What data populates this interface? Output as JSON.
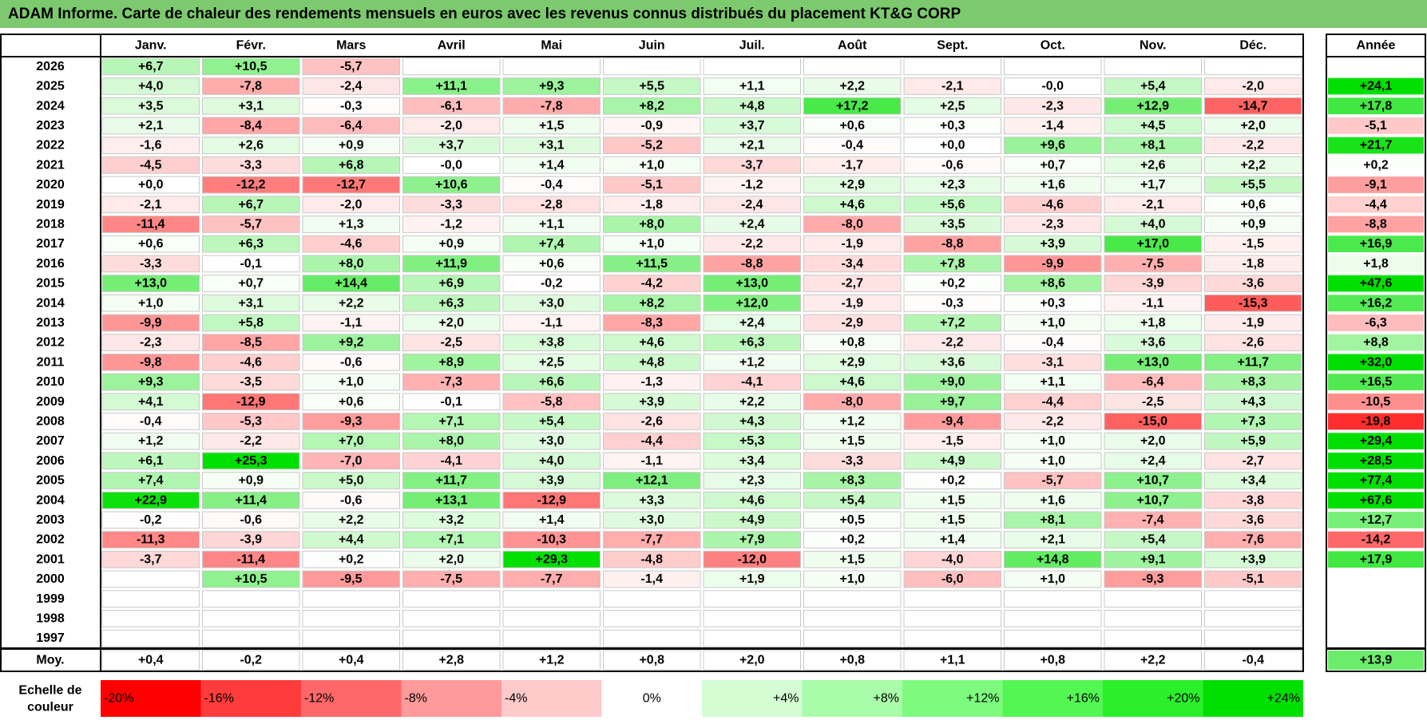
{
  "title": "ADAM Informe. Carte de chaleur des rendements mensuels en euros avec les revenus connus distribués du placement KT&G CORP",
  "chart_data": {
    "type": "heatmap",
    "columns": [
      "Janv.",
      "Févr.",
      "Mars",
      "Avril",
      "Mai",
      "Juin",
      "Juil.",
      "Août",
      "Sept.",
      "Oct.",
      "Nov.",
      "Déc."
    ],
    "year_column_label": "Année",
    "average_row_label": "Moy.",
    "rows": [
      {
        "year": "2026",
        "values": [
          "+6,7",
          "+10,5",
          "-5,7",
          "",
          "",
          "",
          "",
          "",
          "",
          "",
          "",
          ""
        ],
        "annual": ""
      },
      {
        "year": "2025",
        "values": [
          "+4,0",
          "-7,8",
          "-2,4",
          "+11,1",
          "+9,3",
          "+5,5",
          "+1,1",
          "+2,2",
          "-2,1",
          "-0,0",
          "+5,4",
          "-2,0"
        ],
        "annual": "+24,1"
      },
      {
        "year": "2024",
        "values": [
          "+3,5",
          "+3,1",
          "-0,3",
          "-6,1",
          "-7,8",
          "+8,2",
          "+4,8",
          "+17,2",
          "+2,5",
          "-2,3",
          "+12,9",
          "-14,7"
        ],
        "annual": "+17,8"
      },
      {
        "year": "2023",
        "values": [
          "+2,1",
          "-8,4",
          "-6,4",
          "-2,0",
          "+1,5",
          "-0,9",
          "+3,7",
          "+0,6",
          "+0,3",
          "-1,4",
          "+4,5",
          "+2,0"
        ],
        "annual": "-5,1"
      },
      {
        "year": "2022",
        "values": [
          "-1,6",
          "+2,6",
          "+0,9",
          "+3,7",
          "+3,1",
          "-5,2",
          "+2,1",
          "-0,4",
          "+0,0",
          "+9,6",
          "+8,1",
          "-2,2"
        ],
        "annual": "+21,7"
      },
      {
        "year": "2021",
        "values": [
          "-4,5",
          "-3,3",
          "+6,8",
          "-0,0",
          "+1,4",
          "+1,0",
          "-3,7",
          "-1,7",
          "-0,6",
          "+0,7",
          "+2,6",
          "+2,2"
        ],
        "annual": "+0,2"
      },
      {
        "year": "2020",
        "values": [
          "+0,0",
          "-12,2",
          "-12,7",
          "+10,6",
          "-0,4",
          "-5,1",
          "-1,2",
          "+2,9",
          "+2,3",
          "+1,6",
          "+1,7",
          "+5,5"
        ],
        "annual": "-9,1"
      },
      {
        "year": "2019",
        "values": [
          "-2,1",
          "+6,7",
          "-2,0",
          "-3,3",
          "-2,8",
          "-1,8",
          "-2,4",
          "+4,6",
          "+5,6",
          "-4,6",
          "-2,1",
          "+0,6"
        ],
        "annual": "-4,4"
      },
      {
        "year": "2018",
        "values": [
          "-11,4",
          "-5,7",
          "+1,3",
          "-1,2",
          "+1,1",
          "+8,0",
          "+2,4",
          "-8,0",
          "+3,5",
          "-2,3",
          "+4,0",
          "+0,9"
        ],
        "annual": "-8,8"
      },
      {
        "year": "2017",
        "values": [
          "+0,6",
          "+6,3",
          "-4,6",
          "+0,9",
          "+7,4",
          "+1,0",
          "-2,2",
          "-1,9",
          "-8,8",
          "+3,9",
          "+17,0",
          "-1,5"
        ],
        "annual": "+16,9"
      },
      {
        "year": "2016",
        "values": [
          "-3,3",
          "-0,1",
          "+8,0",
          "+11,9",
          "+0,6",
          "+11,5",
          "-8,8",
          "-3,4",
          "+7,8",
          "-9,9",
          "-7,5",
          "-1,8"
        ],
        "annual": "+1,8"
      },
      {
        "year": "2015",
        "values": [
          "+13,0",
          "+0,7",
          "+14,4",
          "+6,9",
          "-0,2",
          "-4,2",
          "+13,0",
          "-2,7",
          "+0,2",
          "+8,6",
          "-3,9",
          "-3,6"
        ],
        "annual": "+47,6"
      },
      {
        "year": "2014",
        "values": [
          "+1,0",
          "+3,1",
          "+2,2",
          "+6,3",
          "+3,0",
          "+8,2",
          "+12,0",
          "-1,9",
          "-0,3",
          "+0,3",
          "-1,1",
          "-15,3"
        ],
        "annual": "+16,2"
      },
      {
        "year": "2013",
        "values": [
          "-9,9",
          "+5,8",
          "-1,1",
          "+2,0",
          "-1,1",
          "-8,3",
          "+2,4",
          "-2,9",
          "+7,2",
          "+1,0",
          "+1,8",
          "-1,9"
        ],
        "annual": "-6,3"
      },
      {
        "year": "2012",
        "values": [
          "-2,3",
          "-8,5",
          "+9,2",
          "-2,5",
          "+3,8",
          "+4,6",
          "+6,3",
          "+0,8",
          "-2,2",
          "-0,4",
          "+3,6",
          "-2,6"
        ],
        "annual": "+8,8"
      },
      {
        "year": "2011",
        "values": [
          "-9,8",
          "-4,6",
          "-0,6",
          "+8,9",
          "+2,5",
          "+4,8",
          "+1,2",
          "+2,9",
          "+3,6",
          "-3,1",
          "+13,0",
          "+11,7"
        ],
        "annual": "+32,0"
      },
      {
        "year": "2010",
        "values": [
          "+9,3",
          "-3,5",
          "+1,0",
          "-7,3",
          "+6,6",
          "-1,3",
          "-4,1",
          "+4,6",
          "+9,0",
          "+1,1",
          "-6,4",
          "+8,3"
        ],
        "annual": "+16,5"
      },
      {
        "year": "2009",
        "values": [
          "+4,1",
          "-12,9",
          "+0,6",
          "-0,1",
          "-5,8",
          "+3,9",
          "+2,2",
          "-8,0",
          "+9,7",
          "-4,4",
          "-2,5",
          "+4,3"
        ],
        "annual": "-10,5"
      },
      {
        "year": "2008",
        "values": [
          "-0,4",
          "-5,3",
          "-9,3",
          "+7,1",
          "+5,4",
          "-2,6",
          "+4,3",
          "+1,2",
          "-9,4",
          "-2,2",
          "-15,0",
          "+7,3"
        ],
        "annual": "-19,8"
      },
      {
        "year": "2007",
        "values": [
          "+1,2",
          "-2,2",
          "+7,0",
          "+8,0",
          "+3,0",
          "-4,4",
          "+5,3",
          "+1,5",
          "-1,5",
          "+1,0",
          "+2,0",
          "+5,9"
        ],
        "annual": "+29,4"
      },
      {
        "year": "2006",
        "values": [
          "+6,1",
          "+25,3",
          "-7,0",
          "-4,1",
          "+4,0",
          "-1,1",
          "+3,4",
          "-3,3",
          "+4,9",
          "+1,0",
          "+2,4",
          "-2,7"
        ],
        "annual": "+28,5"
      },
      {
        "year": "2005",
        "values": [
          "+7,4",
          "+0,9",
          "+5,0",
          "+11,7",
          "+3,9",
          "+12,1",
          "+2,3",
          "+8,3",
          "+0,2",
          "-5,7",
          "+10,7",
          "+3,4"
        ],
        "annual": "+77,4"
      },
      {
        "year": "2004",
        "values": [
          "+22,9",
          "+11,4",
          "-0,6",
          "+13,1",
          "-12,9",
          "+3,3",
          "+4,6",
          "+5,4",
          "+1,5",
          "+1,6",
          "+10,7",
          "-3,8"
        ],
        "annual": "+67,6"
      },
      {
        "year": "2003",
        "values": [
          "-0,2",
          "-0,6",
          "+2,2",
          "+3,2",
          "+1,4",
          "+3,0",
          "+4,9",
          "+0,5",
          "+1,5",
          "+8,1",
          "-7,4",
          "-3,6"
        ],
        "annual": "+12,7"
      },
      {
        "year": "2002",
        "values": [
          "-11,3",
          "-3,9",
          "+4,4",
          "+7,1",
          "-10,3",
          "-7,7",
          "+7,9",
          "+0,2",
          "+1,4",
          "+2,1",
          "+5,4",
          "-7,6"
        ],
        "annual": "-14,2"
      },
      {
        "year": "2001",
        "values": [
          "-3,7",
          "-11,4",
          "+0,2",
          "+2,0",
          "+29,3",
          "-4,8",
          "-12,0",
          "+1,5",
          "-4,0",
          "+14,8",
          "+9,1",
          "+3,9"
        ],
        "annual": "+17,9"
      },
      {
        "year": "2000",
        "values": [
          "",
          "+10,5",
          "-9,5",
          "-7,5",
          "-7,7",
          "-1,4",
          "+1,9",
          "+1,0",
          "-6,0",
          "+1,0",
          "-9,3",
          "-5,1"
        ],
        "annual": ""
      },
      {
        "year": "1999",
        "values": [
          "",
          "",
          "",
          "",
          "",
          "",
          "",
          "",
          "",
          "",
          "",
          ""
        ],
        "annual": ""
      },
      {
        "year": "1998",
        "values": [
          "",
          "",
          "",
          "",
          "",
          "",
          "",
          "",
          "",
          "",
          "",
          ""
        ],
        "annual": ""
      },
      {
        "year": "1997",
        "values": [
          "",
          "",
          "",
          "",
          "",
          "",
          "",
          "",
          "",
          "",
          "",
          ""
        ],
        "annual": ""
      }
    ],
    "average": {
      "values": [
        "+0,4",
        "-0,2",
        "+0,4",
        "+2,8",
        "+1,2",
        "+0,8",
        "+2,0",
        "+0,8",
        "+1,1",
        "+0,8",
        "+2,2",
        "-0,4"
      ],
      "annual": "+13,9"
    },
    "color_scale": {
      "label": "Echelle de couleur",
      "stops": [
        {
          "label": "-20%",
          "color": "#ff0000"
        },
        {
          "label": "-16%",
          "color": "#ff3c3c"
        },
        {
          "label": "-12%",
          "color": "#ff6868"
        },
        {
          "label": "-8%",
          "color": "#ff9a9a"
        },
        {
          "label": "-4%",
          "color": "#ffcaca"
        },
        {
          "label": "0%",
          "color": "#ffffff"
        },
        {
          "label": "+4%",
          "color": "#d4fdd4"
        },
        {
          "label": "+8%",
          "color": "#a9fca9"
        },
        {
          "label": "+12%",
          "color": "#7efa7e"
        },
        {
          "label": "+16%",
          "color": "#54f654"
        },
        {
          "label": "+20%",
          "color": "#2bef2b"
        },
        {
          "label": "+24%",
          "color": "#00e000"
        }
      ]
    },
    "colors": {
      "title_bar": "#7cc96e",
      "negative_max": "#ff0000",
      "positive_max": "#00e000",
      "grid": "#c8c8c8",
      "border": "#000000"
    }
  }
}
